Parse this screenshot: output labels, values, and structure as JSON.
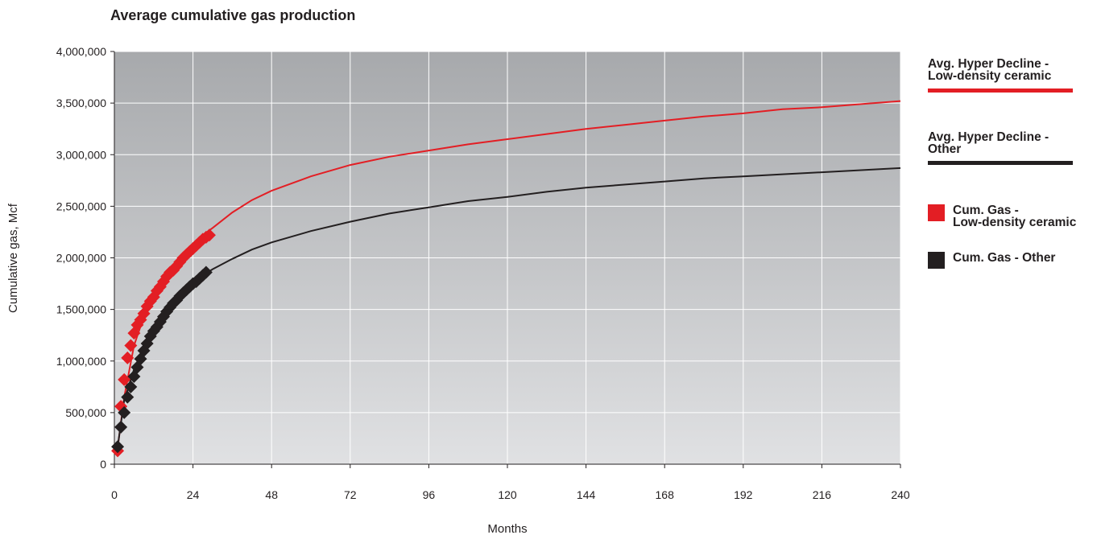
{
  "chart_data": {
    "type": "line",
    "title": "Average cumulative gas production",
    "xlabel": "Months",
    "ylabel": "Cumulative gas, Mcf",
    "xlim": [
      0,
      240
    ],
    "ylim": [
      0,
      4000000
    ],
    "x_ticks": [
      0,
      24,
      48,
      72,
      96,
      120,
      144,
      168,
      192,
      216,
      240
    ],
    "x_tick_labels": [
      "0",
      "24",
      "48",
      "72",
      "96",
      "120",
      "144",
      "168",
      "192",
      "216",
      "240"
    ],
    "y_ticks": [
      0,
      500000,
      1000000,
      1500000,
      2000000,
      2500000,
      3000000,
      3500000,
      4000000
    ],
    "y_tick_labels": [
      "0",
      "500,000",
      "1,000,000",
      "1,500,000",
      "2,000,000",
      "2,500,000",
      "3,000,000",
      "3,500,000",
      "4,000,000"
    ],
    "grid": true,
    "legend_position": "right",
    "series": [
      {
        "name": "Avg. Hyper Decline - Low-density ceramic",
        "kind": "line",
        "color": "#e31e24",
        "x": [
          1,
          3,
          6,
          9,
          12,
          15,
          18,
          21,
          24,
          27,
          30,
          36,
          42,
          48,
          60,
          72,
          84,
          96,
          108,
          120,
          132,
          144,
          156,
          168,
          180,
          192,
          204,
          216,
          228,
          240
        ],
        "y": [
          160000,
          650000,
          1150000,
          1430000,
          1620000,
          1790000,
          1930000,
          2050000,
          2140000,
          2220000,
          2290000,
          2440000,
          2560000,
          2650000,
          2790000,
          2900000,
          2980000,
          3040000,
          3100000,
          3150000,
          3200000,
          3250000,
          3290000,
          3330000,
          3370000,
          3400000,
          3440000,
          3460000,
          3490000,
          3520000
        ]
      },
      {
        "name": "Avg. Hyper Decline - Other",
        "kind": "line",
        "color": "#231f20",
        "x": [
          1,
          3,
          6,
          9,
          12,
          15,
          18,
          21,
          24,
          27,
          30,
          36,
          42,
          48,
          60,
          72,
          84,
          96,
          108,
          120,
          132,
          144,
          156,
          168,
          180,
          192,
          204,
          216,
          228,
          240
        ],
        "y": [
          170000,
          620000,
          920000,
          1140000,
          1300000,
          1440000,
          1560000,
          1670000,
          1750000,
          1830000,
          1890000,
          1990000,
          2080000,
          2150000,
          2260000,
          2350000,
          2430000,
          2490000,
          2550000,
          2590000,
          2640000,
          2680000,
          2710000,
          2740000,
          2770000,
          2790000,
          2810000,
          2830000,
          2850000,
          2870000
        ]
      },
      {
        "name": "Cum. Gas - Low-density ceramic",
        "kind": "scatter",
        "color": "#e31e24",
        "x": [
          1,
          2,
          3,
          4,
          5,
          6,
          7,
          8,
          9,
          10,
          11,
          12,
          13,
          14,
          15,
          16,
          17,
          18,
          19,
          20,
          21,
          22,
          23,
          24,
          25,
          26,
          27,
          28,
          29
        ],
        "y": [
          130000,
          560000,
          820000,
          1030000,
          1150000,
          1270000,
          1350000,
          1400000,
          1460000,
          1530000,
          1580000,
          1620000,
          1680000,
          1720000,
          1770000,
          1820000,
          1860000,
          1880000,
          1920000,
          1960000,
          2000000,
          2030000,
          2060000,
          2090000,
          2120000,
          2150000,
          2180000,
          2200000,
          2220000
        ]
      },
      {
        "name": "Cum. Gas - Other",
        "kind": "scatter",
        "color": "#231f20",
        "x": [
          1,
          2,
          3,
          4,
          5,
          6,
          7,
          8,
          9,
          10,
          11,
          12,
          13,
          14,
          15,
          16,
          17,
          18,
          19,
          20,
          21,
          22,
          23,
          24,
          25,
          26,
          27,
          28
        ],
        "y": [
          170000,
          360000,
          500000,
          650000,
          750000,
          850000,
          940000,
          1020000,
          1100000,
          1170000,
          1240000,
          1290000,
          1330000,
          1380000,
          1430000,
          1480000,
          1520000,
          1560000,
          1590000,
          1630000,
          1660000,
          1690000,
          1720000,
          1750000,
          1770000,
          1800000,
          1830000,
          1860000
        ]
      }
    ]
  },
  "legend": {
    "hyper_ceramic": [
      "Avg. Hyper Decline -",
      "Low-density ceramic"
    ],
    "hyper_other": [
      "Avg. Hyper Decline -",
      "Other"
    ],
    "cum_ceramic": [
      "Cum. Gas -",
      "Low-density ceramic"
    ],
    "cum_other": "Cum. Gas - Other"
  }
}
